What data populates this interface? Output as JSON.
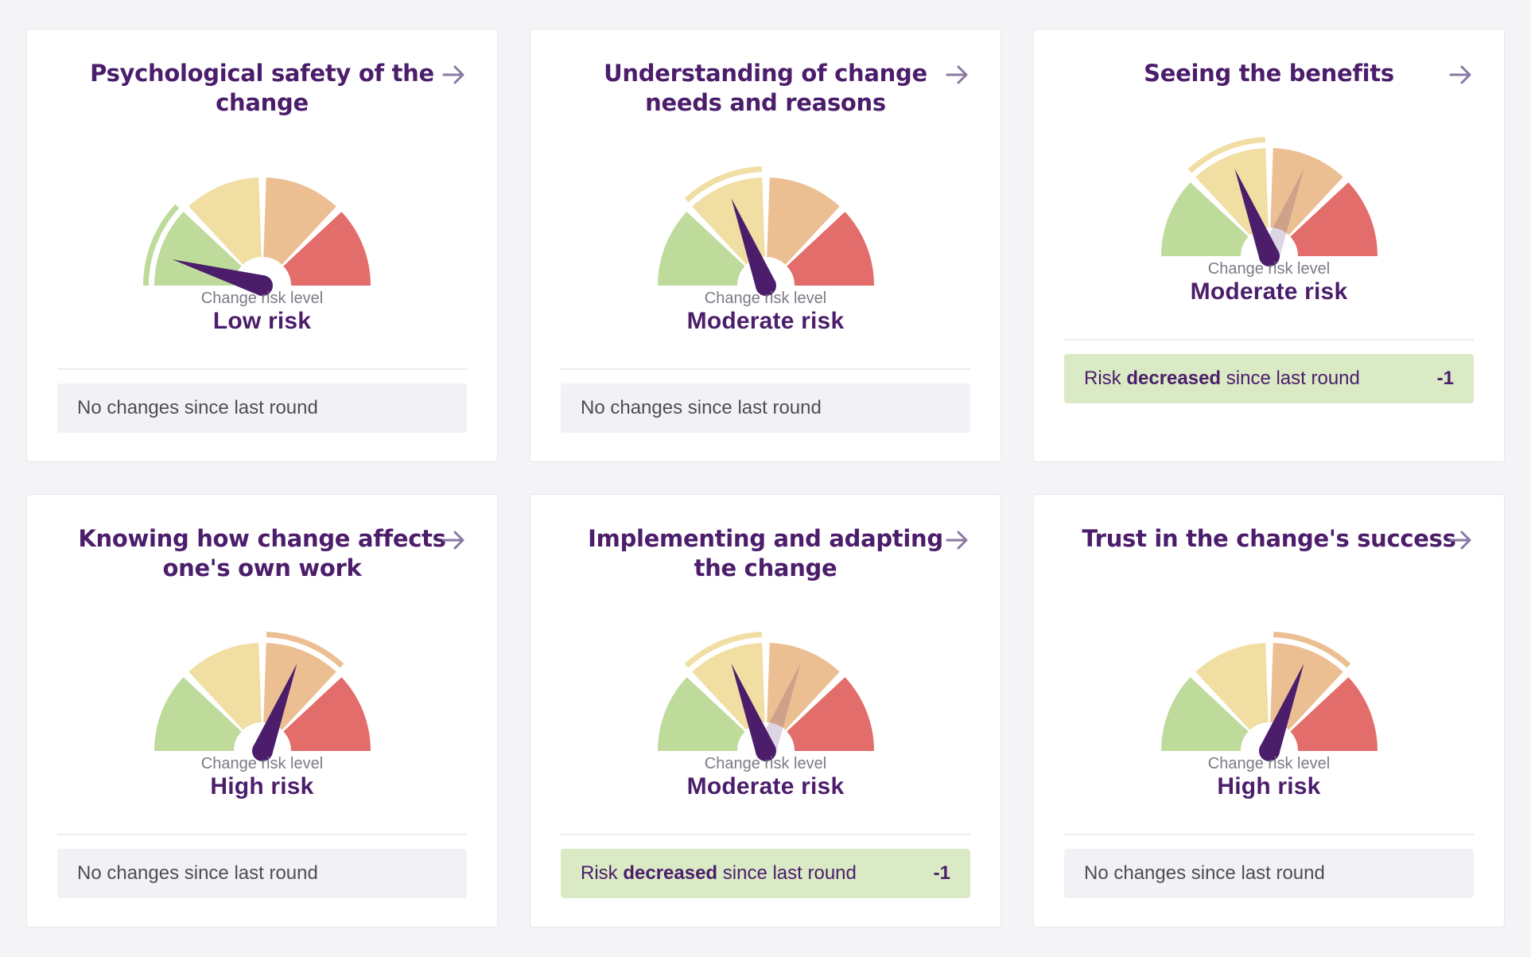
{
  "colors": {
    "title": "#4b1d6b",
    "low": "#bedb9c",
    "lowish": "#f0dea3",
    "moderate": "#ecbf93",
    "high": "#e26d6a",
    "needle": "#4b1d6b",
    "decreased_bg": "#d9eac4",
    "neutral_bg": "#f2f2f6"
  },
  "level_caption": "Change risk level",
  "cards": [
    {
      "title": "Psychological safety of the change",
      "risk_label": "Low risk",
      "needle_fraction": 0.09,
      "highlight_segment": 0,
      "status": {
        "type": "neutral",
        "text": "No changes since last round"
      }
    },
    {
      "title": "Understanding of change needs and reasons",
      "risk_label": "Moderate risk",
      "needle_fraction": 0.38,
      "highlight_segment": 1,
      "status": {
        "type": "neutral",
        "text": "No changes since last round"
      }
    },
    {
      "title": "Seeing the benefits",
      "risk_label": "Moderate risk",
      "needle_fraction": 0.38,
      "ghost_fraction": 0.62,
      "highlight_segment": 1,
      "status": {
        "type": "decreased",
        "prefix": "Risk ",
        "emphasis": "decreased",
        "suffix": " since last round",
        "delta": "-1"
      }
    },
    {
      "title": "Knowing how change affects one's own work",
      "risk_label": "High risk",
      "needle_fraction": 0.62,
      "highlight_segment": 2,
      "status": {
        "type": "neutral",
        "text": "No changes since last round"
      }
    },
    {
      "title": "Implementing and adapting the change",
      "risk_label": "Moderate risk",
      "needle_fraction": 0.38,
      "ghost_fraction": 0.62,
      "highlight_segment": 1,
      "status": {
        "type": "decreased",
        "prefix": "Risk ",
        "emphasis": "decreased",
        "suffix": " since last round",
        "delta": "-1"
      }
    },
    {
      "title": "Trust in the change's success",
      "risk_label": "High risk",
      "needle_fraction": 0.62,
      "highlight_segment": 2,
      "status": {
        "type": "neutral",
        "text": "No changes since last round"
      }
    }
  ]
}
